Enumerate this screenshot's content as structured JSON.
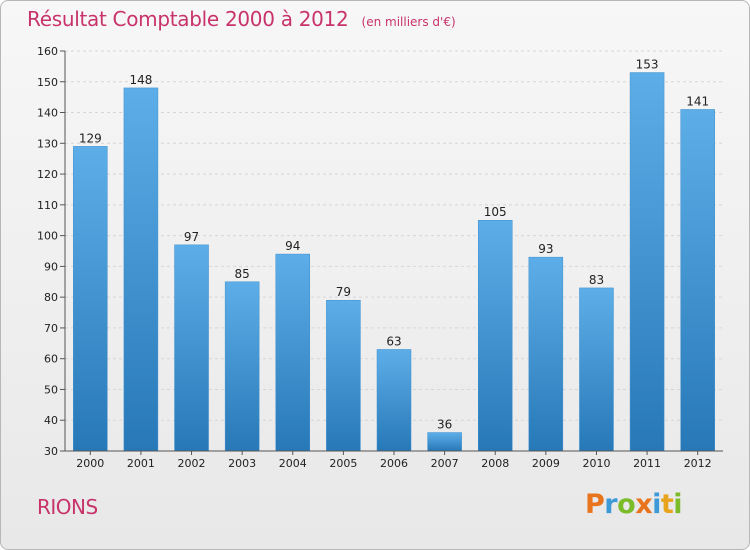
{
  "header": {
    "title": "Résultat Comptable 2000 à 2012",
    "subtitle": "(en milliers d'€)"
  },
  "footer": {
    "place": "RIONS",
    "logo": "Proxiti"
  },
  "colors": {
    "title": "#c8336b",
    "bar_top": "#5daee8",
    "bar_bottom": "#2778b7",
    "grid": "#d6d6d6",
    "background": "#efefef"
  },
  "chart_data": {
    "type": "bar",
    "categories": [
      "2000",
      "2001",
      "2002",
      "2003",
      "2004",
      "2005",
      "2006",
      "2007",
      "2008",
      "2009",
      "2010",
      "2011",
      "2012"
    ],
    "values": [
      129,
      148,
      97,
      85,
      94,
      79,
      63,
      36,
      105,
      93,
      83,
      153,
      141
    ],
    "yticks": [
      30,
      40,
      50,
      60,
      70,
      80,
      90,
      100,
      110,
      120,
      130,
      140,
      150,
      160
    ],
    "ylim": [
      30,
      160
    ],
    "grid": true,
    "legend": "none"
  }
}
